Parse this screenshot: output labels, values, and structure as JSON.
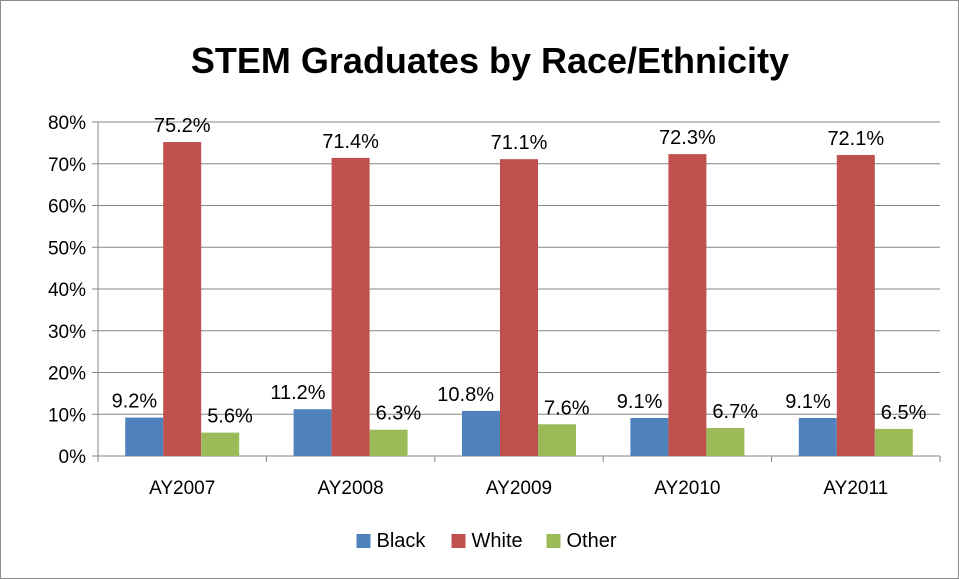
{
  "chart_data": {
    "type": "bar",
    "title": "STEM Graduates by Race/Ethnicity",
    "categories": [
      "AY2007",
      "AY2008",
      "AY2009",
      "AY2010",
      "AY2011"
    ],
    "series": [
      {
        "name": "Black",
        "color": "#4f81bd",
        "values": [
          9.2,
          11.2,
          10.8,
          9.1,
          9.1
        ],
        "labels": [
          "9.2%",
          "11.2%",
          "10.8%",
          "9.1%",
          "9.1%"
        ]
      },
      {
        "name": "White",
        "color": "#c0504d",
        "values": [
          75.2,
          71.4,
          71.1,
          72.3,
          72.1
        ],
        "labels": [
          "75.2%",
          "71.4%",
          "71.1%",
          "72.3%",
          "72.1%"
        ]
      },
      {
        "name": "Other",
        "color": "#9bbb59",
        "values": [
          5.6,
          6.3,
          7.6,
          6.7,
          6.5
        ],
        "labels": [
          "5.6%",
          "6.3%",
          "7.6%",
          "6.7%",
          "6.5%"
        ]
      }
    ],
    "ylim": [
      0,
      80
    ],
    "yticks": [
      0,
      10,
      20,
      30,
      40,
      50,
      60,
      70,
      80
    ],
    "ytick_labels": [
      "0%",
      "10%",
      "20%",
      "30%",
      "40%",
      "50%",
      "60%",
      "70%",
      "80%"
    ],
    "grid": true,
    "legend_position": "bottom"
  }
}
